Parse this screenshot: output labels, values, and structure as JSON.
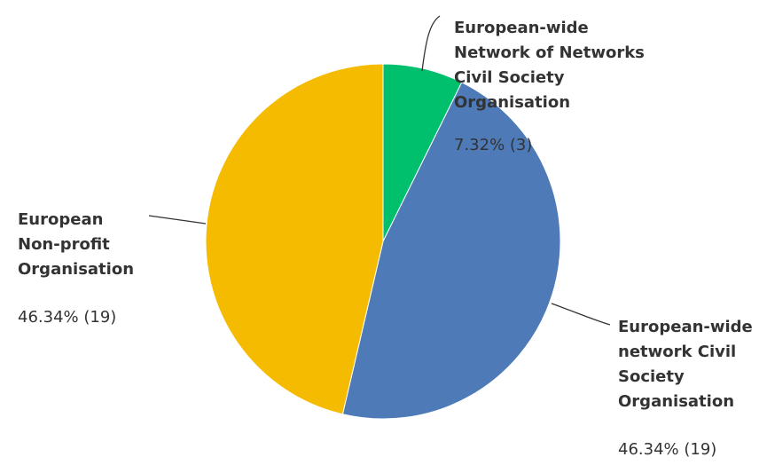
{
  "chart_data": {
    "type": "pie",
    "slices": [
      {
        "label_lines": [
          "European-wide",
          "Network of Networks",
          "Civil Society",
          "Organisation"
        ],
        "value_label": "7.32% (3)",
        "percent": 7.32,
        "count": 3,
        "color": "#00c06d"
      },
      {
        "label_lines": [
          "European-wide",
          "network Civil",
          "Society",
          "Organisation"
        ],
        "value_label": "46.34% (19)",
        "percent": 46.34,
        "count": 19,
        "color": "#4e7ab8"
      },
      {
        "label_lines": [
          "European",
          "Non-profit",
          "Organisation"
        ],
        "value_label": "46.34% (19)",
        "percent": 46.34,
        "count": 19,
        "color": "#f5bb00"
      }
    ]
  }
}
